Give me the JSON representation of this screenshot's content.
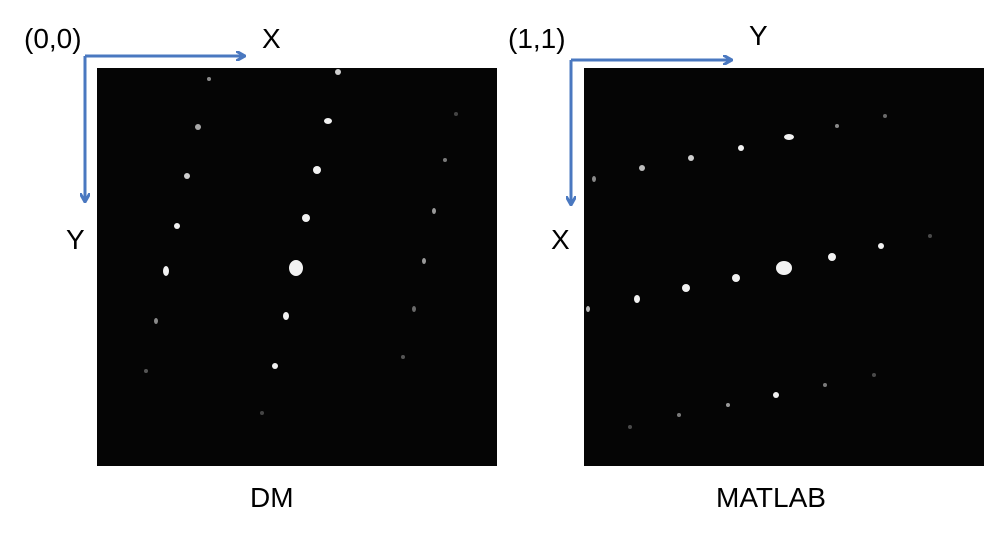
{
  "accent_color": "#4a78c0",
  "panels": [
    {
      "id": "dm",
      "caption": "DM",
      "origin_label": "(0,0)",
      "horizontal_axis_label": "X",
      "vertical_axis_label": "Y"
    },
    {
      "id": "matlab",
      "caption": "MATLAB",
      "origin_label": "(1,1)",
      "horizontal_axis_label": "Y",
      "vertical_axis_label": "X"
    }
  ]
}
